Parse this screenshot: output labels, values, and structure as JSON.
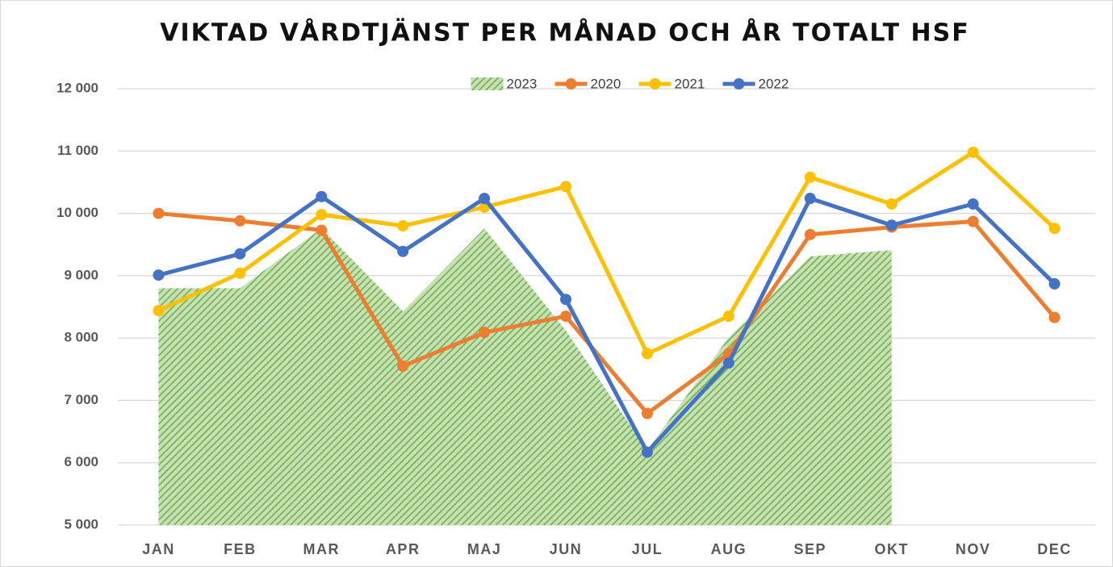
{
  "chart_data": {
    "type": "line",
    "title": "VIKTAD VÅRDTJÄNST PER MÅNAD OCH ÅR TOTALT HSF",
    "categories": [
      "JAN",
      "FEB",
      "MAR",
      "APR",
      "MAJ",
      "JUN",
      "JUL",
      "AUG",
      "SEP",
      "OKT",
      "NOV",
      "DEC"
    ],
    "series": [
      {
        "name": "2023",
        "type": "area",
        "color": "#70ad47",
        "values": [
          8800,
          8800,
          9760,
          8430,
          9760,
          8120,
          6200,
          8010,
          9310,
          9410,
          null,
          null
        ]
      },
      {
        "name": "2020",
        "color": "#ed7d31",
        "values": [
          10000,
          9880,
          9730,
          7550,
          8090,
          8350,
          6790,
          7750,
          9660,
          9780,
          9870,
          8330
        ]
      },
      {
        "name": "2021",
        "color": "#ffc000",
        "values": [
          8440,
          9040,
          9980,
          9800,
          10100,
          10430,
          7750,
          8350,
          10580,
          10150,
          10980,
          9760
        ]
      },
      {
        "name": "2022",
        "color": "#4472c4",
        "values": [
          9010,
          9350,
          10270,
          9390,
          10240,
          8620,
          6170,
          7600,
          10240,
          9810,
          10150,
          8870
        ]
      }
    ],
    "ylim": [
      5000,
      12000
    ],
    "yticks": [
      {
        "value": 5000,
        "label": "5 000"
      },
      {
        "value": 6000,
        "label": "6 000"
      },
      {
        "value": 7000,
        "label": "7 000"
      },
      {
        "value": 8000,
        "label": "8 000"
      },
      {
        "value": 9000,
        "label": "9 000"
      },
      {
        "value": 10000,
        "label": "10 000"
      },
      {
        "value": 11000,
        "label": "11 000"
      },
      {
        "value": 12000,
        "label": "12 000"
      }
    ],
    "grid": true,
    "legend": "top"
  }
}
